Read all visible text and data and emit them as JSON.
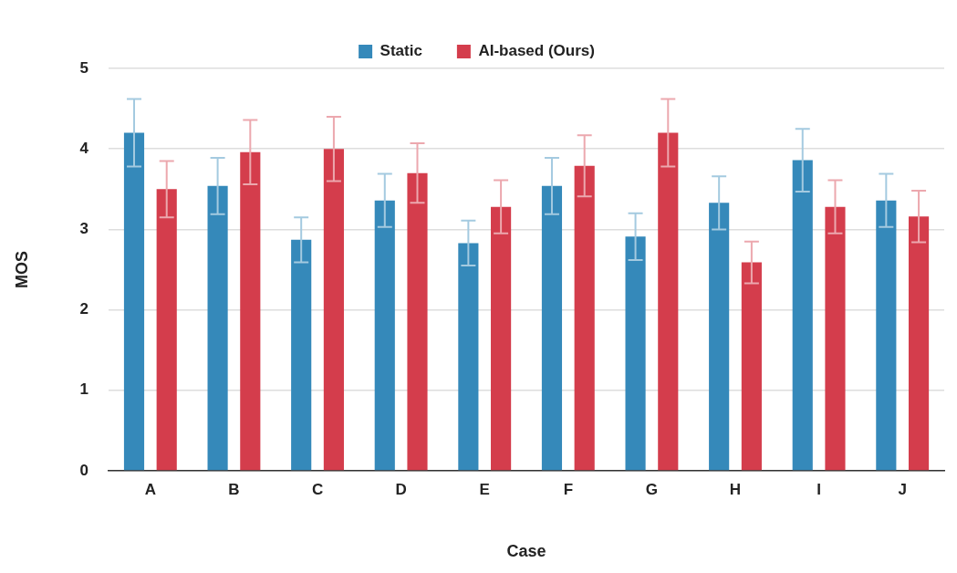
{
  "chart_data": {
    "type": "bar",
    "xlabel": "Case",
    "ylabel": "MOS",
    "categories": [
      "A",
      "B",
      "C",
      "D",
      "E",
      "F",
      "G",
      "H",
      "I",
      "J"
    ],
    "series": [
      {
        "name": "Static",
        "color": "#3589ba",
        "values": [
          4.2,
          3.54,
          2.87,
          3.36,
          2.83,
          3.54,
          2.91,
          3.33,
          3.86,
          3.36
        ],
        "errors": [
          0.42,
          0.35,
          0.28,
          0.33,
          0.28,
          0.35,
          0.29,
          0.33,
          0.39,
          0.33
        ]
      },
      {
        "name": "AI-based (Ours)",
        "color": "#d43d4c",
        "values": [
          3.5,
          3.96,
          4.0,
          3.7,
          3.28,
          3.79,
          4.2,
          2.59,
          3.28,
          3.16
        ],
        "errors": [
          0.35,
          0.4,
          0.4,
          0.37,
          0.33,
          0.38,
          0.42,
          0.26,
          0.33,
          0.32
        ]
      }
    ],
    "ylim": [
      0,
      5
    ],
    "yticks": [
      0,
      1,
      2,
      3,
      4,
      5
    ],
    "grid": "y",
    "legend": "top"
  }
}
